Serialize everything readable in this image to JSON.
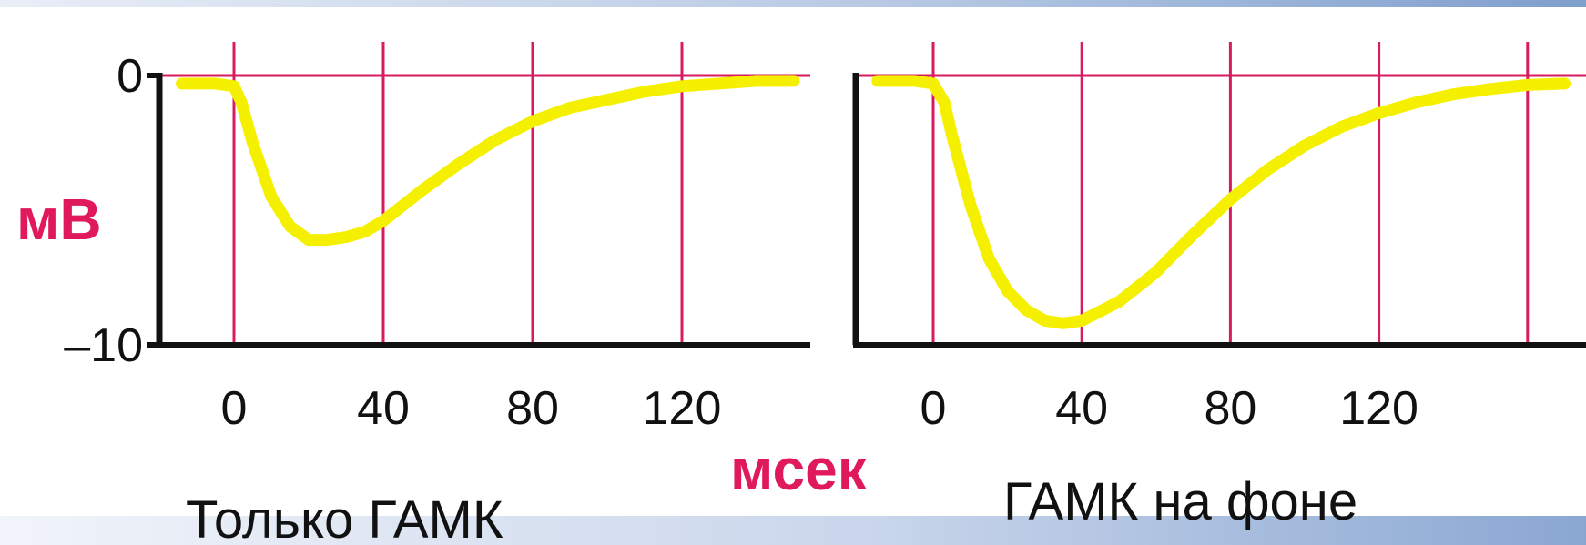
{
  "colors": {
    "trace": "#f5f000",
    "grid": "#d81b60",
    "axis": "#111111",
    "unit_label": "#e0185c",
    "caption": "#111111"
  },
  "ylabel": "мВ",
  "xlabel": "мсек",
  "chart_data": [
    {
      "type": "line",
      "title": "Только ГАМК",
      "xlabel": "мсек",
      "ylabel": "мВ",
      "xlim": [
        -20,
        150
      ],
      "ylim": [
        -10,
        0
      ],
      "grid": true,
      "x_ticks": [
        0,
        40,
        80,
        120
      ],
      "x_tick_labels": [
        "0",
        "40",
        "80",
        "120"
      ],
      "y_ticks": [
        0,
        -10
      ],
      "y_tick_labels": [
        "0",
        "–10"
      ],
      "series": [
        {
          "x": [
            -14,
            -5,
            0,
            2,
            5,
            10,
            15,
            20,
            25,
            30,
            35,
            40,
            50,
            60,
            70,
            80,
            90,
            100,
            110,
            120,
            130,
            140,
            150
          ],
          "y": [
            -0.3,
            -0.3,
            -0.4,
            -1.0,
            -2.5,
            -4.5,
            -5.6,
            -6.1,
            -6.1,
            -6.0,
            -5.8,
            -5.4,
            -4.3,
            -3.3,
            -2.4,
            -1.7,
            -1.2,
            -0.9,
            -0.6,
            -0.4,
            -0.3,
            -0.2,
            -0.2
          ]
        }
      ]
    },
    {
      "type": "line",
      "title": "ГАМК на фоне",
      "xlabel": "мсек",
      "ylabel": "мВ",
      "xlim": [
        -17,
        175
      ],
      "ylim": [
        -10,
        0
      ],
      "grid": true,
      "x_ticks": [
        0,
        40,
        80,
        120,
        160
      ],
      "x_tick_labels": [
        "0",
        "40",
        "80",
        "120",
        ""
      ],
      "series": [
        {
          "x": [
            -15,
            -5,
            0,
            3,
            5,
            10,
            15,
            20,
            25,
            30,
            35,
            40,
            50,
            60,
            70,
            80,
            90,
            100,
            110,
            120,
            130,
            140,
            150,
            160,
            170
          ],
          "y": [
            -0.2,
            -0.2,
            -0.3,
            -1.0,
            -2.2,
            -4.8,
            -6.8,
            -8.0,
            -8.7,
            -9.1,
            -9.2,
            -9.1,
            -8.4,
            -7.3,
            -5.9,
            -4.6,
            -3.5,
            -2.6,
            -1.9,
            -1.4,
            -1.0,
            -0.7,
            -0.5,
            -0.35,
            -0.3
          ]
        }
      ]
    }
  ]
}
